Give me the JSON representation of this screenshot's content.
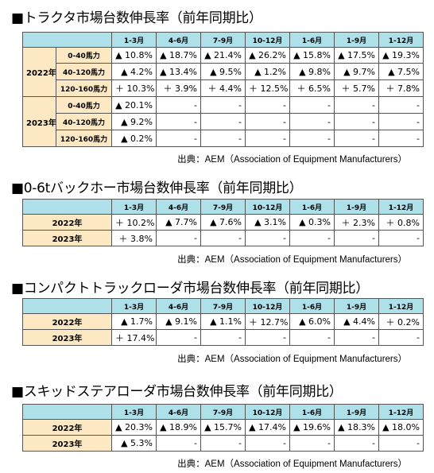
{
  "tables": [
    {
      "title": "■トラクタ市場台数伸長率（前年同期比）",
      "headers": [
        "1-3月",
        "4-6月",
        "7-9月",
        "10-12月",
        "1-6月",
        "1-9月",
        "1-12月"
      ],
      "groups": [
        {
          "year": "2022年",
          "rows": [
            {
              "label": "0-40馬力",
              "values": [
                "▲ 10.8%",
                "▲ 18.7%",
                "▲ 21.4%",
                "▲ 26.2%",
                "▲ 15.8%",
                "▲ 17.5%",
                "▲ 19.3%"
              ]
            },
            {
              "label": "40-120馬力",
              "values": [
                "▲ 4.2%",
                "▲ 13.4%",
                "▲ 9.5%",
                "▲ 1.2%",
                "▲ 9.8%",
                "▲ 9.7%",
                "▲ 7.5%"
              ]
            },
            {
              "label": "120-160馬力",
              "values": [
                "＋ 10.3%",
                "＋ 3.9%",
                "＋ 4.4%",
                "＋ 12.5%",
                "＋ 6.5%",
                "＋ 5.7%",
                "＋ 7.8%"
              ]
            }
          ]
        },
        {
          "year": "2023年",
          "rows": [
            {
              "label": "0-40馬力",
              "values": [
                "▲ 20.1%",
                "-",
                "-",
                "-",
                "-",
                "-",
                "-"
              ]
            },
            {
              "label": "40-120馬力",
              "values": [
                "▲ 9.2%",
                "-",
                "-",
                "-",
                "-",
                "-",
                "-"
              ]
            },
            {
              "label": "120-160馬力",
              "values": [
                "▲ 0.2%",
                "-",
                "-",
                "-",
                "-",
                "-",
                "-"
              ]
            }
          ]
        }
      ],
      "source": "出典：AEM（Association of Equipment Manufacturers）"
    },
    {
      "title": "■0-6tバックホー市場台数伸長率（前年同期比）",
      "headers": [
        "1-3月",
        "4-6月",
        "7-9月",
        "10-12月",
        "1-6月",
        "1-9月",
        "1-12月"
      ],
      "rows": [
        {
          "label": "2022年",
          "values": [
            "＋ 10.2%",
            "▲ 7.7%",
            "▲ 7.6%",
            "▲ 3.1%",
            "▲ 0.3%",
            "＋ 2.3%",
            "＋ 0.8%"
          ]
        },
        {
          "label": "2023年",
          "values": [
            "＋ 3.8%",
            "-",
            "-",
            "-",
            "-",
            "-",
            "-"
          ]
        }
      ],
      "source": "出典：AEM（Association of Equipment Manufacturers）"
    },
    {
      "title": "■コンパクトトラックローダ市場台数伸長率（前年同期比）",
      "headers": [
        "1-3月",
        "4-6月",
        "7-9月",
        "10-12月",
        "1-6月",
        "1-9月",
        "1-12月"
      ],
      "rows": [
        {
          "label": "2022年",
          "values": [
            "▲ 1.7%",
            "▲ 9.1%",
            "▲ 1.1%",
            "＋ 12.7%",
            "▲ 6.0%",
            "▲ 4.4%",
            "＋ 0.2%"
          ]
        },
        {
          "label": "2023年",
          "values": [
            "＋ 17.4%",
            "-",
            "-",
            "-",
            "-",
            "-",
            "-"
          ]
        }
      ],
      "source": "出典：AEM（Association of Equipment Manufacturers）"
    },
    {
      "title": "■スキッドステアローダ市場台数伸長率（前年同期比）",
      "headers": [
        "1-3月",
        "4-6月",
        "7-9月",
        "10-12月",
        "1-6月",
        "1-9月",
        "1-12月"
      ],
      "rows": [
        {
          "label": "2022年",
          "values": [
            "▲ 20.3%",
            "▲ 18.9%",
            "▲ 15.7%",
            "▲ 17.4%",
            "▲ 19.6%",
            "▲ 18.3%",
            "▲ 18.0%"
          ]
        },
        {
          "label": "2023年",
          "values": [
            "▲ 5.3%",
            "-",
            "-",
            "-",
            "-",
            "-",
            "-"
          ]
        }
      ],
      "source": "出典：AEM（Association of Equipment Manufacturers）"
    }
  ]
}
